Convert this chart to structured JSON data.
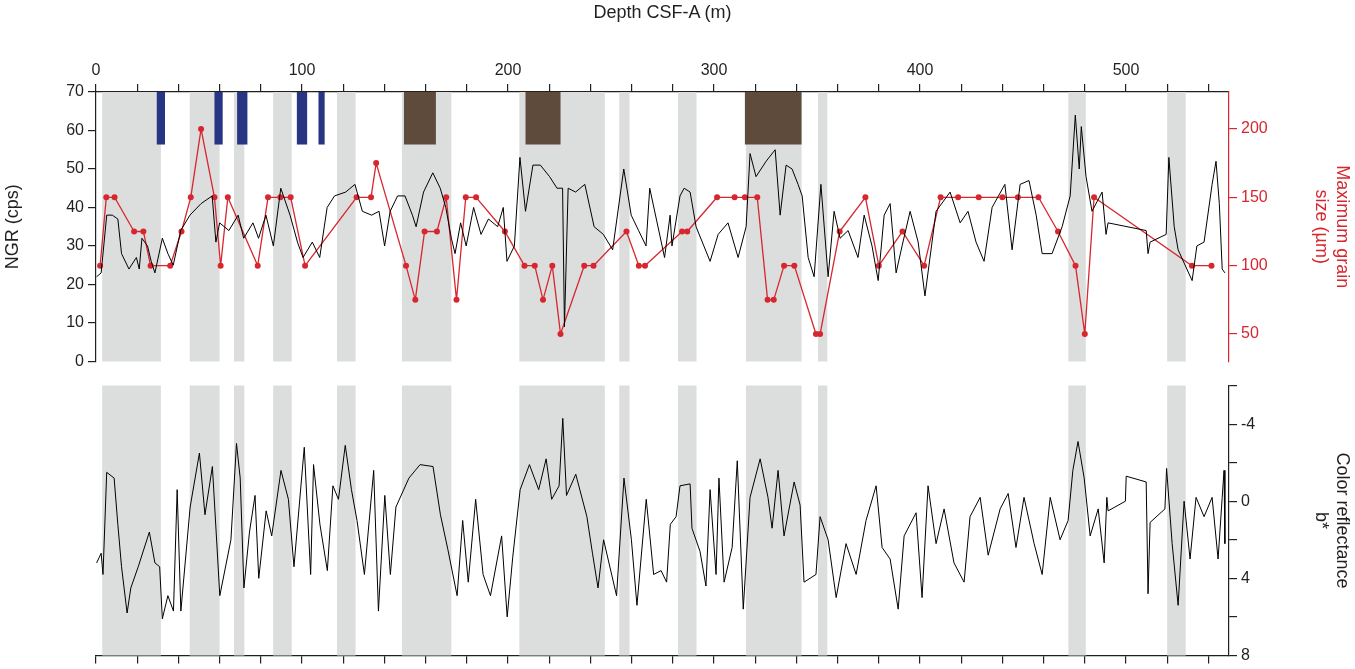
{
  "chart_data": [
    {
      "type": "line",
      "xlabel": "Depth CSF-A (m)",
      "ylabel": "NGR (cps)",
      "y2label": "Maximum grain\nsize (µm)",
      "xlim": [
        0,
        550
      ],
      "xticks": [
        0,
        {
          "value": 20,
          "label": null
        },
        {
          "value": 40,
          "label": null
        },
        {
          "value": 60,
          "label": null
        },
        {
          "value": 80,
          "label": null
        },
        100,
        {
          "value": 120,
          "label": null
        },
        {
          "value": 140,
          "label": null
        },
        {
          "value": 160,
          "label": null
        },
        {
          "value": 180,
          "label": null
        },
        200,
        {
          "value": 220,
          "label": null
        },
        {
          "value": 240,
          "label": null
        },
        {
          "value": 260,
          "label": null
        },
        {
          "value": 280,
          "label": null
        },
        300,
        {
          "value": 320,
          "label": null
        },
        {
          "value": 340,
          "label": null
        },
        {
          "value": 360,
          "label": null
        },
        {
          "value": 380,
          "label": null
        },
        400,
        {
          "value": 420,
          "label": null
        },
        {
          "value": 440,
          "label": null
        },
        {
          "value": 460,
          "label": null
        },
        {
          "value": 480,
          "label": null
        },
        500,
        {
          "value": 520,
          "label": null
        },
        {
          "value": 540,
          "label": null
        }
      ],
      "ylim": [
        0,
        70
      ],
      "yticks": [
        0,
        10,
        20,
        30,
        40,
        50,
        60,
        70
      ],
      "y2lim": [
        30,
        227
      ],
      "y2ticks": [
        50,
        100,
        150,
        200
      ],
      "grid": false,
      "legend": false,
      "bands": [
        {
          "axis": "x",
          "from": 3,
          "to": 31.5
        },
        {
          "axis": "x",
          "from": 45.5,
          "to": 60
        },
        {
          "axis": "x",
          "from": 67,
          "to": 72
        },
        {
          "axis": "x",
          "from": 86,
          "to": 95
        },
        {
          "axis": "x",
          "from": 117,
          "to": 126
        },
        {
          "axis": "x",
          "from": 148.5,
          "to": 172.5
        },
        {
          "axis": "x",
          "from": 205.5,
          "to": 247
        },
        {
          "axis": "x",
          "from": 254,
          "to": 259
        },
        {
          "axis": "x",
          "from": 282.5,
          "to": 291.5
        },
        {
          "axis": "x",
          "from": 315.5,
          "to": 342.5
        },
        {
          "axis": "x",
          "from": 350.5,
          "to": 355
        },
        {
          "axis": "x",
          "from": 472,
          "to": 480.5
        },
        {
          "axis": "x",
          "from": 520,
          "to": 529
        },
        {
          "axis": "x",
          "from": 29.5,
          "to": 33.5,
          "color": "#283583"
        },
        {
          "axis": "x",
          "from": 57.5,
          "to": 61.5,
          "color": "#283583"
        },
        {
          "axis": "x",
          "from": 68.5,
          "to": 73.5,
          "color": "#283583"
        },
        {
          "axis": "x",
          "from": 97.5,
          "to": 102.5,
          "color": "#283583"
        },
        {
          "axis": "x",
          "from": 108,
          "to": 111,
          "color": "#283583"
        },
        {
          "axis": "x",
          "from": 149.5,
          "to": 165,
          "color": "#5e4b3c"
        },
        {
          "axis": "x",
          "from": 208.5,
          "to": 225.5,
          "color": "#5e4b3c"
        },
        {
          "axis": "x",
          "from": 315,
          "to": 342.5,
          "color": "#5e4b3c"
        }
      ],
      "series": [
        {
          "color": "#000000",
          "marker": "none",
          "x": [
            0.3,
            2.5,
            5.2,
            7.9,
            10.6,
            12.4,
            16,
            19.6,
            21,
            22.3,
            25,
            26.8,
            28.6,
            32.2,
            34.9,
            37.5,
            41.1,
            45.6,
            51,
            56.4,
            58.2,
            60,
            64.5,
            69,
            71.7,
            76.2,
            78.9,
            82.5,
            86.1,
            89.7,
            94.2,
            97.8,
            100.5,
            105,
            108.6,
            112.2,
            115.8,
            121.2,
            125.7,
            129.3,
            133.8,
            137.4,
            140.1,
            142.8,
            146.4,
            150,
            153.6,
            155.4,
            159,
            163.5,
            167.1,
            169.8,
            172.5,
            174.3,
            177,
            179.7,
            183.3,
            186.9,
            190.5,
            195,
            197.7,
            199.5,
            203.1,
            205.8,
            208.5,
            212.1,
            215.7,
            220.2,
            223.8,
            226.5,
            227.4,
            229.2,
            232.8,
            237.3,
            241.8,
            246.3,
            250.8,
            254.4,
            256.2,
            259.8,
            263.4,
            267,
            268.8,
            272.4,
            276,
            278.7,
            279.6,
            283.5,
            285.5,
            288.4,
            291.3,
            298.1,
            302,
            306.8,
            311.7,
            315.6,
            317.5,
            320.4,
            325.3,
            329.7,
            332.1,
            335,
            337.9,
            340.8,
            342.8,
            345.7,
            348.6,
            351.9,
            355.4,
            358.3,
            361.2,
            365.1,
            369.9,
            372.9,
            376.7,
            379.7,
            382.6,
            385.5,
            388.4,
            391.3,
            395.2,
            399.1,
            402.4,
            407.8,
            414.6,
            419.5,
            423.3,
            427.2,
            431.1,
            435,
            441.2,
            444.7,
            448.6,
            452.9,
            456.4,
            459.3,
            464.1,
            469,
            472.9,
            475.4,
            477.3,
            478.3,
            480.6,
            483.5,
            488.4,
            490.3,
            491.3,
            509.8,
            510.7,
            511.7,
            519.5,
            520.8,
            523.4,
            525.3,
            532.1,
            534.4,
            537.9,
            541.8,
            543.7,
            545.3,
            546.7,
            548
          ],
          "values": [
            22,
            23,
            38,
            38,
            37,
            28,
            24,
            27,
            24,
            32,
            30,
            26,
            23,
            32,
            28,
            25,
            34,
            38,
            41,
            43,
            31,
            36,
            34,
            38,
            32,
            36,
            32,
            38,
            30,
            45,
            38,
            31,
            27,
            31,
            27,
            40,
            43,
            44,
            46,
            39,
            38,
            39,
            30,
            39,
            43,
            43,
            38,
            35,
            44,
            49,
            45,
            40,
            32,
            28,
            36,
            30,
            40,
            33,
            37,
            35,
            40,
            26,
            30,
            53,
            39,
            51,
            51,
            48,
            45,
            45,
            9,
            45,
            44,
            46,
            35,
            33,
            29,
            43,
            50,
            38,
            34,
            30,
            45,
            36,
            27,
            38,
            30,
            43,
            45,
            44,
            35,
            26,
            33,
            36,
            27,
            35,
            54,
            48,
            52,
            55,
            38,
            51,
            50,
            46,
            43,
            27,
            22,
            46,
            22,
            39,
            32,
            34,
            27,
            38,
            30,
            21,
            38,
            41,
            23,
            30,
            39,
            31,
            17,
            39,
            44,
            36,
            39,
            31,
            26,
            40,
            46,
            29,
            46,
            47,
            38,
            28,
            28,
            35,
            43,
            64,
            50,
            61,
            48,
            39,
            44,
            33,
            36,
            34,
            28,
            31,
            33,
            53,
            35,
            29,
            21,
            30,
            31,
            46,
            52,
            41,
            24,
            23
          ]
        },
        {
          "color": "#d7262e",
          "axis": "y2",
          "marker": "circle",
          "x": [
            2,
            5,
            9,
            18.5,
            23,
            26.5,
            36,
            41.5,
            46,
            51,
            57.5,
            60.5,
            64,
            78.5,
            83.5,
            89.5,
            94.5,
            101.5,
            126.5,
            133.5,
            136,
            150.5,
            155,
            159.5,
            165.5,
            170,
            175,
            179.5,
            184.5,
            198.5,
            208,
            213,
            217,
            221.5,
            225.5,
            237,
            241.5,
            257.5,
            263.5,
            266.5,
            284.5,
            287,
            301.5,
            310,
            315,
            321,
            326,
            329,
            334,
            339,
            349.5,
            351.5,
            361,
            373.5,
            380,
            391.5,
            402,
            410,
            418.5,
            428.5,
            440,
            447.5,
            457.5,
            467,
            475.5,
            480,
            484.5,
            532,
            541.5
          ],
          "values": [
            100,
            150,
            150,
            125,
            125,
            100,
            100,
            125,
            150,
            200,
            150,
            100,
            150,
            100,
            150,
            150,
            150,
            100,
            150,
            150,
            175,
            100,
            75,
            125,
            125,
            150,
            75,
            150,
            150,
            125,
            100,
            100,
            75,
            100,
            50,
            100,
            100,
            125,
            100,
            100,
            125,
            125,
            150,
            150,
            150,
            150,
            75,
            75,
            100,
            100,
            50,
            50,
            125,
            150,
            100,
            125,
            100,
            150,
            150,
            150,
            150,
            150,
            150,
            125,
            100,
            50,
            150,
            100,
            100
          ]
        }
      ]
    },
    {
      "type": "line",
      "ylabel": "Color reflectance\nb*",
      "xlim": [
        0,
        550
      ],
      "xticks": [
        0,
        {
          "value": 20,
          "label": null
        },
        {
          "value": 40,
          "label": null
        },
        {
          "value": 60,
          "label": null
        },
        {
          "value": 80,
          "label": null
        },
        100,
        {
          "value": 120,
          "label": null
        },
        {
          "value": 140,
          "label": null
        },
        {
          "value": 160,
          "label": null
        },
        {
          "value": 180,
          "label": null
        },
        200,
        {
          "value": 220,
          "label": null
        },
        {
          "value": 240,
          "label": null
        },
        {
          "value": 260,
          "label": null
        },
        {
          "value": 280,
          "label": null
        },
        300,
        {
          "value": 320,
          "label": null
        },
        {
          "value": 340,
          "label": null
        },
        {
          "value": 360,
          "label": null
        },
        {
          "value": 380,
          "label": null
        },
        400,
        {
          "value": 420,
          "label": null
        },
        {
          "value": 440,
          "label": null
        },
        {
          "value": 460,
          "label": null
        },
        {
          "value": 480,
          "label": null
        },
        500,
        {
          "value": 520,
          "label": null
        },
        {
          "value": 540,
          "label": null
        }
      ],
      "ylim": [
        8,
        -6
      ],
      "yticks": [
        {
          "value": -6,
          "label": null
        },
        -4,
        {
          "value": -2,
          "label": null
        },
        0,
        {
          "value": 2,
          "label": null
        },
        4,
        {
          "value": 6,
          "label": null
        },
        8
      ],
      "tick_labels": "y",
      "grid": false,
      "legend": false,
      "bands": [
        {
          "axis": "x",
          "from": 3,
          "to": 31.5
        },
        {
          "axis": "x",
          "from": 45.5,
          "to": 60
        },
        {
          "axis": "x",
          "from": 67,
          "to": 72
        },
        {
          "axis": "x",
          "from": 86,
          "to": 95
        },
        {
          "axis": "x",
          "from": 117,
          "to": 126
        },
        {
          "axis": "x",
          "from": 148.5,
          "to": 172.5
        },
        {
          "axis": "x",
          "from": 205.5,
          "to": 247
        },
        {
          "axis": "x",
          "from": 254,
          "to": 259
        },
        {
          "axis": "x",
          "from": 282.5,
          "to": 291.5
        },
        {
          "axis": "x",
          "from": 315.5,
          "to": 342.5
        },
        {
          "axis": "x",
          "from": 350.5,
          "to": 355
        },
        {
          "axis": "x",
          "from": 472,
          "to": 480.5
        },
        {
          "axis": "x",
          "from": 520,
          "to": 529
        }
      ],
      "series": [
        {
          "color": "#000000",
          "marker": "none",
          "x": [
            0.3,
            2.5,
            3.4,
            5.2,
            8.8,
            10.6,
            12.4,
            15.1,
            16.9,
            20.5,
            25.9,
            28.6,
            30.9,
            32.2,
            34.9,
            37.6,
            39.4,
            41.2,
            45.7,
            50.2,
            52.9,
            56.5,
            60.1,
            65.5,
            68.2,
            70,
            71.8,
            74.5,
            77.2,
            79,
            82.6,
            85.3,
            89.8,
            93.4,
            96.1,
            101.1,
            104.2,
            105.6,
            108.7,
            112.3,
            115,
            117.7,
            121,
            124,
            126.7,
            130.3,
            134.8,
            137.1,
            140.2,
            142.9,
            145.6,
            151.9,
            157.3,
            163.6,
            167.2,
            170.8,
            175.3,
            178,
            180.7,
            184.3,
            187.9,
            191.5,
            196.9,
            199.6,
            202.3,
            205.9,
            210.4,
            214.9,
            218.5,
            221.2,
            224.8,
            226.6,
            228.4,
            232.9,
            238.3,
            241,
            243.7,
            246.4,
            252.7,
            256.3,
            259.9,
            262.6,
            267.1,
            270.7,
            274.3,
            277,
            278.8,
            281.6,
            283.5,
            288.4,
            289.3,
            293.2,
            296.1,
            298.1,
            301,
            302.4,
            304.9,
            308.8,
            311.3,
            314.2,
            317.5,
            322.4,
            326.2,
            328.2,
            331.1,
            334,
            338.9,
            341.8,
            343.7,
            349.5,
            351.5,
            355.4,
            359.3,
            364.1,
            369,
            373.8,
            378.7,
            381.6,
            385.5,
            389.4,
            392.3,
            398.1,
            401,
            403.9,
            407.8,
            411.7,
            416.5,
            421.4,
            424.3,
            429.2,
            433.1,
            438.9,
            442.8,
            446.6,
            450.5,
            455.4,
            459.3,
            463.2,
            468,
            471.9,
            474.2,
            476.7,
            479.7,
            482.6,
            486.5,
            489.4,
            490.7,
            491.3,
            499.7,
            500.1,
            509.8,
            510.7,
            511.7,
            518.9,
            519.7,
            522.4,
            525.3,
            528.2,
            531.1,
            534,
            537.9,
            541.8,
            544.7,
            546.7,
            547.6,
            548
          ],
          "values": [
            3.2,
            2.7,
            3.8,
            -1.5,
            -1.2,
            1.2,
            3.4,
            5.8,
            4.5,
            3.4,
            1.6,
            3.2,
            3.4,
            6.1,
            4.9,
            5.7,
            -0.6,
            5.7,
            0.3,
            -2.5,
            0.7,
            -1.8,
            4.9,
            2.0,
            -3.0,
            -1.2,
            4.5,
            1.6,
            -0.3,
            4.0,
            0.5,
            1.8,
            -1.6,
            -0.1,
            3.4,
            -2.8,
            3.8,
            -1.9,
            1.2,
            3.6,
            -0.8,
            -0.1,
            -2.9,
            -0.6,
            1.0,
            3.8,
            -1.6,
            5.7,
            -0.3,
            3.8,
            0.3,
            -1.2,
            -1.9,
            -1.8,
            0.7,
            2.5,
            4.9,
            1.0,
            4.2,
            -0.1,
            3.8,
            4.9,
            1.8,
            6.0,
            2.9,
            -0.6,
            -1.9,
            -0.6,
            -2.2,
            -0.1,
            -0.8,
            -4.3,
            -0.3,
            -1.4,
            0.8,
            2.7,
            4.5,
            2.0,
            4.9,
            -1.2,
            2.0,
            5.4,
            -0.1,
            3.8,
            3.6,
            4.2,
            1.2,
            0.8,
            -0.8,
            -0.9,
            1.4,
            2.6,
            4.4,
            -0.6,
            3.8,
            -1.2,
            4.2,
            2.4,
            -2.1,
            5.6,
            -0.2,
            -2.2,
            -0.2,
            1.4,
            -1.6,
            1.8,
            -1.0,
            0.2,
            4.2,
            3.8,
            0.8,
            2.0,
            5.0,
            2.2,
            3.8,
            1.0,
            -0.8,
            2.4,
            3.0,
            5.6,
            1.8,
            0.6,
            5.0,
            -0.8,
            2.2,
            0.4,
            3.2,
            4.2,
            0.8,
            -0.2,
            2.8,
            0.4,
            -0.4,
            2.4,
            -0.2,
            2.2,
            3.8,
            -0.2,
            2.0,
            1.0,
            -1.6,
            -3.1,
            -1.2,
            1.8,
            0.4,
            3.2,
            -0.2,
            0.5,
            0.0,
            -1.3,
            -1.0,
            4.8,
            1.1,
            0.4,
            -1.7,
            2.2,
            5.4,
            0.0,
            3.0,
            -0.2,
            0.8,
            -0.2,
            3.0,
            -0.2,
            -1.6,
            2.2
          ]
        }
      ]
    }
  ]
}
